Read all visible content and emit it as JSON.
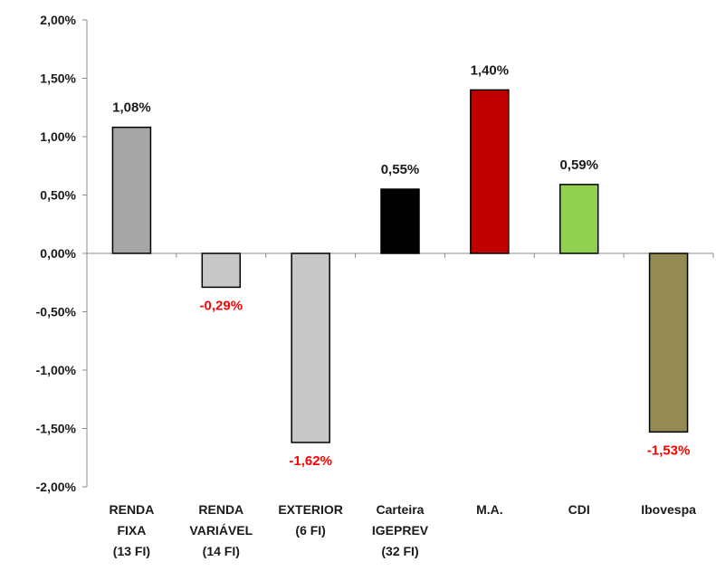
{
  "chart_data": {
    "type": "bar",
    "title": "",
    "xlabel": "",
    "ylabel": "",
    "ylim": [
      -2.0,
      2.0
    ],
    "y_ticks": [
      "2,00%",
      "1,50%",
      "1,00%",
      "0,50%",
      "0,00%",
      "-0,50%",
      "-1,00%",
      "-1,50%",
      "-2,00%"
    ],
    "y_tick_values": [
      2.0,
      1.5,
      1.0,
      0.5,
      0.0,
      -0.5,
      -1.0,
      -1.5,
      -2.0
    ],
    "grid": false,
    "legend": "none",
    "categories": [
      [
        "RENDA",
        "FIXA",
        "(13 FI)"
      ],
      [
        "RENDA",
        "VARIÁVEL",
        "(14 FI)"
      ],
      [
        "EXTERIOR",
        "(6 FI)"
      ],
      [
        "Carteira",
        "IGEPREV",
        "(32 FI)"
      ],
      [
        "M.A."
      ],
      [
        "CDI"
      ],
      [
        "Ibovespa"
      ]
    ],
    "values": [
      1.08,
      -0.29,
      -1.62,
      0.55,
      1.4,
      0.59,
      -1.53
    ],
    "value_labels": [
      "1,08%",
      "-0,29%",
      "-1,62%",
      "0,55%",
      "1,40%",
      "0,59%",
      "-1,53%"
    ],
    "bar_colors": [
      "#a6a6a6",
      "#c8c8c8",
      "#c8c8c8",
      "#000000",
      "#c00000",
      "#92d050",
      "#948a54"
    ],
    "positive_label_color": "#1a1a1a",
    "negative_label_color": "#ff0000"
  }
}
